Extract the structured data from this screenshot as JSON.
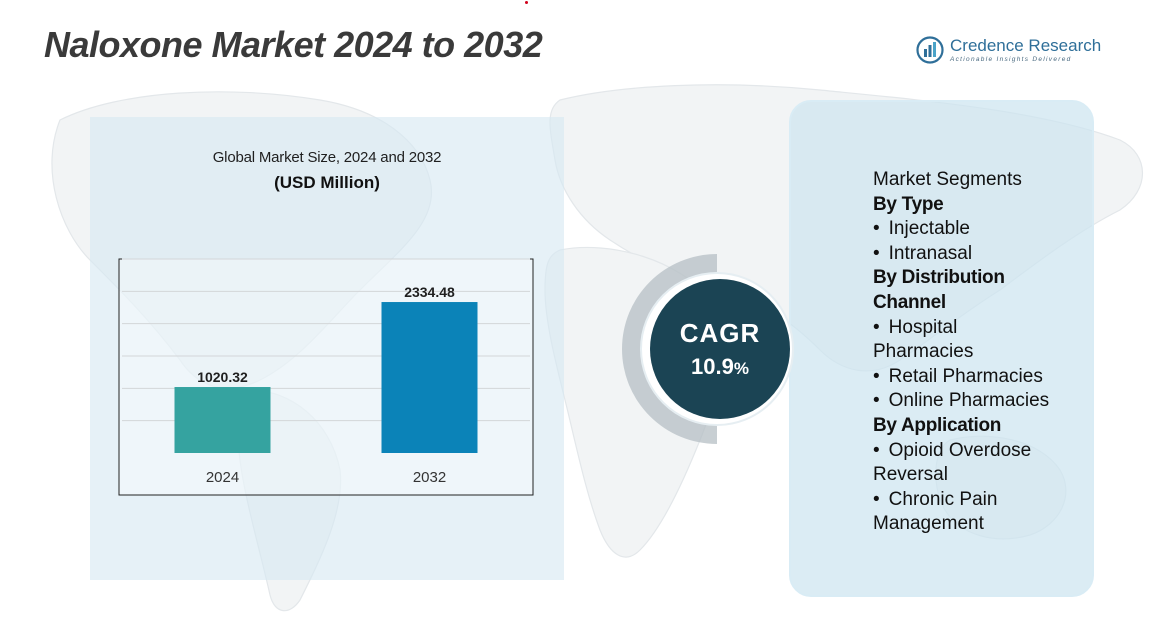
{
  "page": {
    "title": "Naloxone Market 2024 to 2032"
  },
  "brand": {
    "name": "Credence Research",
    "tagline": "Actionable Insights Delivered",
    "color": "#2f6f99",
    "icon": "bar-chart-logo-icon"
  },
  "chart_data": {
    "type": "bar",
    "title": "Global Market Size, 2024 and 2032",
    "subtitle": "(USD Million)",
    "categories": [
      "2024",
      "2032"
    ],
    "values": [
      1020.32,
      2334.48
    ],
    "value_labels": [
      "1020.32",
      "2334.48"
    ],
    "colors": [
      "#35a3a0",
      "#0b83b8"
    ],
    "ylim": [
      0,
      3000
    ],
    "grid": true,
    "legend": "none"
  },
  "cagr": {
    "label": "CAGR",
    "value": "10.9",
    "unit": "%",
    "color": "#1b4454"
  },
  "segments": {
    "title": "Market Segments",
    "lines": [
      {
        "kind": "heading",
        "text": "By Type"
      },
      {
        "kind": "item",
        "text": "Injectable"
      },
      {
        "kind": "item",
        "text": "Intranasal"
      },
      {
        "kind": "heading",
        "text": "By Distribution"
      },
      {
        "kind": "heading",
        "text": "Channel"
      },
      {
        "kind": "item",
        "text": "Hospital"
      },
      {
        "kind": "cont",
        "text": "Pharmacies"
      },
      {
        "kind": "item",
        "text": "Retail Pharmacies"
      },
      {
        "kind": "item",
        "text": "Online Pharmacies"
      },
      {
        "kind": "heading",
        "text": "By Application"
      },
      {
        "kind": "item",
        "text": "Opioid Overdose"
      },
      {
        "kind": "cont",
        "text": "Reversal"
      },
      {
        "kind": "item",
        "text": "Chronic Pain"
      },
      {
        "kind": "cont",
        "text": "Management"
      }
    ]
  }
}
